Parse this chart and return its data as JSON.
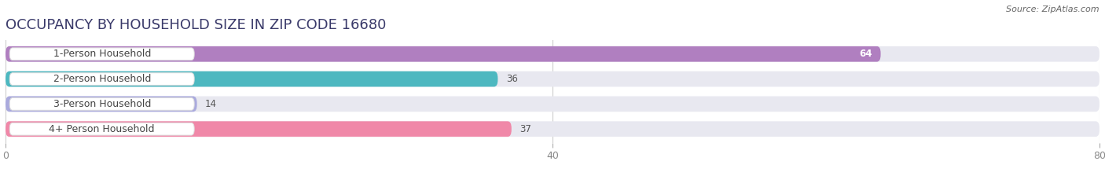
{
  "title": "OCCUPANCY BY HOUSEHOLD SIZE IN ZIP CODE 16680",
  "source": "Source: ZipAtlas.com",
  "categories": [
    "1-Person Household",
    "2-Person Household",
    "3-Person Household",
    "4+ Person Household"
  ],
  "values": [
    64,
    36,
    14,
    37
  ],
  "bar_colors": [
    "#b07fc0",
    "#4db8c0",
    "#aaaadd",
    "#f088a8"
  ],
  "xlim": [
    0,
    80
  ],
  "xticks": [
    0,
    40,
    80
  ],
  "background_color": "#ffffff",
  "bar_bg_color": "#e8e8f0",
  "title_fontsize": 13,
  "label_fontsize": 9,
  "value_fontsize": 8.5,
  "source_fontsize": 8,
  "title_color": "#3a3a6a",
  "value_inside_color": "#ffffff",
  "value_outside_color": "#555555",
  "label_text_color": "#444444",
  "tick_color": "#888888",
  "grid_color": "#cccccc"
}
